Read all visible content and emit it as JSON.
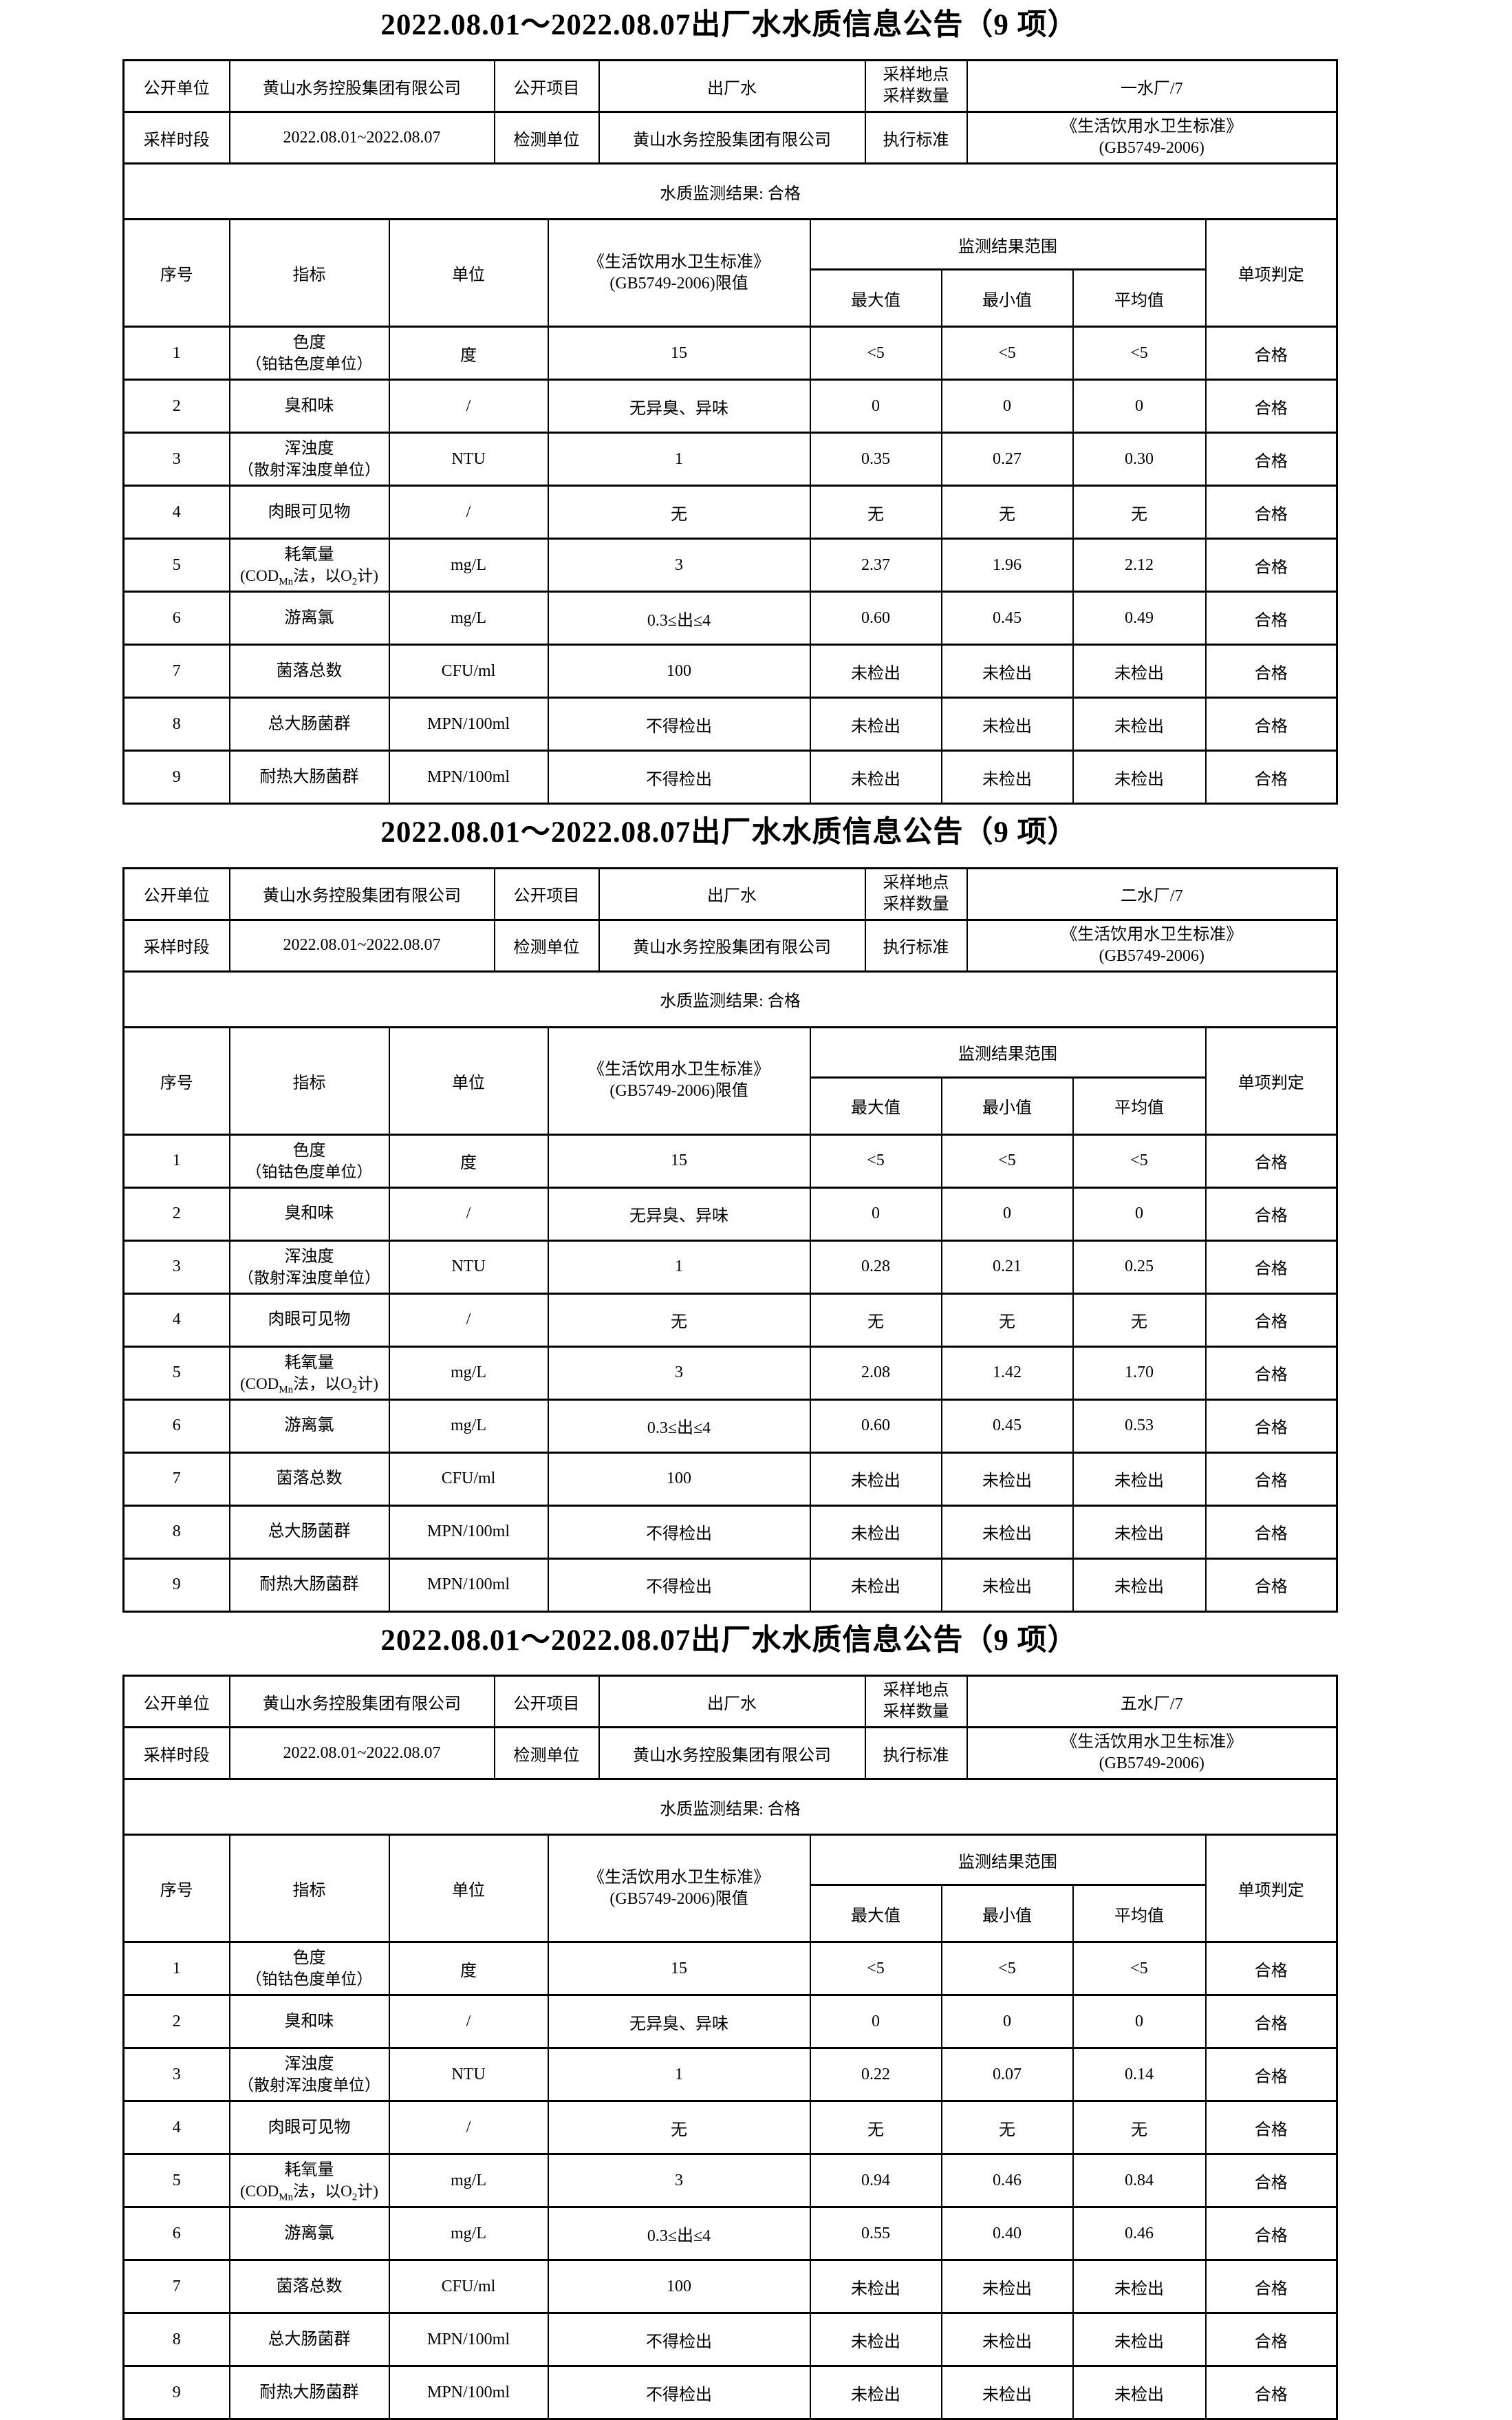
{
  "page": {
    "background_color": "#ffffff",
    "text_color": "#000000",
    "border_color": "#000000"
  },
  "sections": [
    {
      "title": "2022.08.01～2022.08.07出厂水水质信息公告（9 项）",
      "meta": {
        "open_unit_label": "公开单位",
        "open_unit_value": "黄山水务控股集团有限公司",
        "open_item_label": "公开项目",
        "open_item_value": "出厂水",
        "sample_point_label_line1": "采样地点",
        "sample_point_label_line2": "采样数量",
        "sample_point_value": "一水厂/7",
        "sample_period_label": "采样时段",
        "sample_period_value": "2022.08.01~2022.08.07",
        "test_unit_label": "检测单位",
        "test_unit_value": "黄山水务控股集团有限公司",
        "standard_label": "执行标准",
        "standard_value_line1": "《生活饮用水卫生标准》",
        "standard_value_line2": "(GB5749-2006)"
      },
      "result_summary": "水质监测结果: 合格",
      "table_header": {
        "no": "序号",
        "indicator": "指标",
        "unit": "单位",
        "limit_line1": "《生活饮用水卫生标准》",
        "limit_line2": "(GB5749-2006)限值",
        "range": "监测结果范围",
        "max": "最大值",
        "min": "最小值",
        "avg": "平均值",
        "verdict": "单项判定"
      },
      "rows": [
        {
          "no": "1",
          "name": "色度",
          "name2": "（铂钴色度单位）",
          "unit": "度",
          "limit": "15",
          "max": "<5",
          "min": "<5",
          "avg": "<5",
          "verdict": "合格"
        },
        {
          "no": "2",
          "name": "臭和味",
          "name2": "",
          "unit": "/",
          "limit": "无异臭、异味",
          "max": "0",
          "min": "0",
          "avg": "0",
          "verdict": "合格"
        },
        {
          "no": "3",
          "name": "浑浊度",
          "name2": "（散射浑浊度单位）",
          "unit": "NTU",
          "limit": "1",
          "max": "0.35",
          "min": "0.27",
          "avg": "0.30",
          "verdict": "合格"
        },
        {
          "no": "4",
          "name": "肉眼可见物",
          "name2": "",
          "unit": "/",
          "limit": "无",
          "max": "无",
          "min": "无",
          "avg": "无",
          "verdict": "合格"
        },
        {
          "no": "5",
          "name": "耗氧量",
          "name2": "(COD_{Mn}法，以O_{2}计)",
          "unit": "mg/L",
          "limit": "3",
          "max": "2.37",
          "min": "1.96",
          "avg": "2.12",
          "verdict": "合格"
        },
        {
          "no": "6",
          "name": "游离氯",
          "name2": "",
          "unit": "mg/L",
          "limit": "0.3≤出≤4",
          "max": "0.60",
          "min": "0.45",
          "avg": "0.49",
          "verdict": "合格"
        },
        {
          "no": "7",
          "name": "菌落总数",
          "name2": "",
          "unit": "CFU/ml",
          "limit": "100",
          "max": "未检出",
          "min": "未检出",
          "avg": "未检出",
          "verdict": "合格"
        },
        {
          "no": "8",
          "name": "总大肠菌群",
          "name2": "",
          "unit": "MPN/100ml",
          "limit": "不得检出",
          "max": "未检出",
          "min": "未检出",
          "avg": "未检出",
          "verdict": "合格"
        },
        {
          "no": "9",
          "name": "耐热大肠菌群",
          "name2": "",
          "unit": "MPN/100ml",
          "limit": "不得检出",
          "max": "未检出",
          "min": "未检出",
          "avg": "未检出",
          "verdict": "合格"
        }
      ]
    },
    {
      "title": "2022.08.01～2022.08.07出厂水水质信息公告（9 项）",
      "meta": {
        "open_unit_label": "公开单位",
        "open_unit_value": "黄山水务控股集团有限公司",
        "open_item_label": "公开项目",
        "open_item_value": "出厂水",
        "sample_point_label_line1": "采样地点",
        "sample_point_label_line2": "采样数量",
        "sample_point_value": "二水厂/7",
        "sample_period_label": "采样时段",
        "sample_period_value": "2022.08.01~2022.08.07",
        "test_unit_label": "检测单位",
        "test_unit_value": "黄山水务控股集团有限公司",
        "standard_label": "执行标准",
        "standard_value_line1": "《生活饮用水卫生标准》",
        "standard_value_line2": "(GB5749-2006)"
      },
      "result_summary": "水质监测结果: 合格",
      "table_header": {
        "no": "序号",
        "indicator": "指标",
        "unit": "单位",
        "limit_line1": "《生活饮用水卫生标准》",
        "limit_line2": "(GB5749-2006)限值",
        "range": "监测结果范围",
        "max": "最大值",
        "min": "最小值",
        "avg": "平均值",
        "verdict": "单项判定"
      },
      "rows": [
        {
          "no": "1",
          "name": "色度",
          "name2": "（铂钴色度单位）",
          "unit": "度",
          "limit": "15",
          "max": "<5",
          "min": "<5",
          "avg": "<5",
          "verdict": "合格"
        },
        {
          "no": "2",
          "name": "臭和味",
          "name2": "",
          "unit": "/",
          "limit": "无异臭、异味",
          "max": "0",
          "min": "0",
          "avg": "0",
          "verdict": "合格"
        },
        {
          "no": "3",
          "name": "浑浊度",
          "name2": "（散射浑浊度单位）",
          "unit": "NTU",
          "limit": "1",
          "max": "0.28",
          "min": "0.21",
          "avg": "0.25",
          "verdict": "合格"
        },
        {
          "no": "4",
          "name": "肉眼可见物",
          "name2": "",
          "unit": "/",
          "limit": "无",
          "max": "无",
          "min": "无",
          "avg": "无",
          "verdict": "合格"
        },
        {
          "no": "5",
          "name": "耗氧量",
          "name2": "(COD_{Mn}法，以O_{2}计)",
          "unit": "mg/L",
          "limit": "3",
          "max": "2.08",
          "min": "1.42",
          "avg": "1.70",
          "verdict": "合格"
        },
        {
          "no": "6",
          "name": "游离氯",
          "name2": "",
          "unit": "mg/L",
          "limit": "0.3≤出≤4",
          "max": "0.60",
          "min": "0.45",
          "avg": "0.53",
          "verdict": "合格"
        },
        {
          "no": "7",
          "name": "菌落总数",
          "name2": "",
          "unit": "CFU/ml",
          "limit": "100",
          "max": "未检出",
          "min": "未检出",
          "avg": "未检出",
          "verdict": "合格"
        },
        {
          "no": "8",
          "name": "总大肠菌群",
          "name2": "",
          "unit": "MPN/100ml",
          "limit": "不得检出",
          "max": "未检出",
          "min": "未检出",
          "avg": "未检出",
          "verdict": "合格"
        },
        {
          "no": "9",
          "name": "耐热大肠菌群",
          "name2": "",
          "unit": "MPN/100ml",
          "limit": "不得检出",
          "max": "未检出",
          "min": "未检出",
          "avg": "未检出",
          "verdict": "合格"
        }
      ]
    },
    {
      "title": "2022.08.01～2022.08.07出厂水水质信息公告（9 项）",
      "meta": {
        "open_unit_label": "公开单位",
        "open_unit_value": "黄山水务控股集团有限公司",
        "open_item_label": "公开项目",
        "open_item_value": "出厂水",
        "sample_point_label_line1": "采样地点",
        "sample_point_label_line2": "采样数量",
        "sample_point_value": "五水厂/7",
        "sample_period_label": "采样时段",
        "sample_period_value": "2022.08.01~2022.08.07",
        "test_unit_label": "检测单位",
        "test_unit_value": "黄山水务控股集团有限公司",
        "standard_label": "执行标准",
        "standard_value_line1": "《生活饮用水卫生标准》",
        "standard_value_line2": "(GB5749-2006)"
      },
      "result_summary": "水质监测结果: 合格",
      "table_header": {
        "no": "序号",
        "indicator": "指标",
        "unit": "单位",
        "limit_line1": "《生活饮用水卫生标准》",
        "limit_line2": "(GB5749-2006)限值",
        "range": "监测结果范围",
        "max": "最大值",
        "min": "最小值",
        "avg": "平均值",
        "verdict": "单项判定"
      },
      "rows": [
        {
          "no": "1",
          "name": "色度",
          "name2": "（铂钴色度单位）",
          "unit": "度",
          "limit": "15",
          "max": "<5",
          "min": "<5",
          "avg": "<5",
          "verdict": "合格"
        },
        {
          "no": "2",
          "name": "臭和味",
          "name2": "",
          "unit": "/",
          "limit": "无异臭、异味",
          "max": "0",
          "min": "0",
          "avg": "0",
          "verdict": "合格"
        },
        {
          "no": "3",
          "name": "浑浊度",
          "name2": "（散射浑浊度单位）",
          "unit": "NTU",
          "limit": "1",
          "max": "0.22",
          "min": "0.07",
          "avg": "0.14",
          "verdict": "合格"
        },
        {
          "no": "4",
          "name": "肉眼可见物",
          "name2": "",
          "unit": "/",
          "limit": "无",
          "max": "无",
          "min": "无",
          "avg": "无",
          "verdict": "合格"
        },
        {
          "no": "5",
          "name": "耗氧量",
          "name2": "(COD_{Mn}法，以O_{2}计)",
          "unit": "mg/L",
          "limit": "3",
          "max": "0.94",
          "min": "0.46",
          "avg": "0.84",
          "verdict": "合格"
        },
        {
          "no": "6",
          "name": "游离氯",
          "name2": "",
          "unit": "mg/L",
          "limit": "0.3≤出≤4",
          "max": "0.55",
          "min": "0.40",
          "avg": "0.46",
          "verdict": "合格"
        },
        {
          "no": "7",
          "name": "菌落总数",
          "name2": "",
          "unit": "CFU/ml",
          "limit": "100",
          "max": "未检出",
          "min": "未检出",
          "avg": "未检出",
          "verdict": "合格"
        },
        {
          "no": "8",
          "name": "总大肠菌群",
          "name2": "",
          "unit": "MPN/100ml",
          "limit": "不得检出",
          "max": "未检出",
          "min": "未检出",
          "avg": "未检出",
          "verdict": "合格"
        },
        {
          "no": "9",
          "name": "耐热大肠菌群",
          "name2": "",
          "unit": "MPN/100ml",
          "limit": "不得检出",
          "max": "未检出",
          "min": "未检出",
          "avg": "未检出",
          "verdict": "合格"
        }
      ]
    }
  ]
}
